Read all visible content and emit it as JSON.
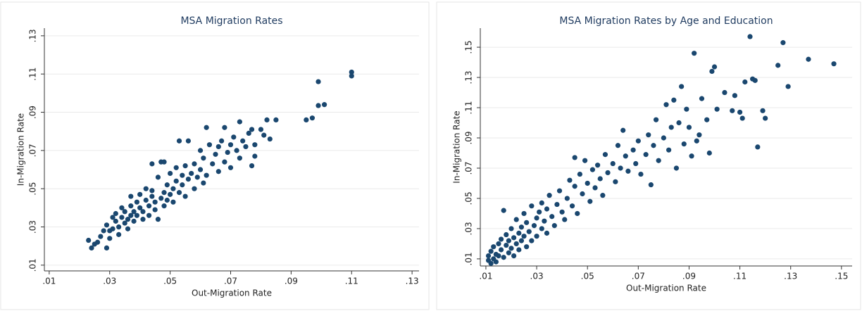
{
  "chart_data": [
    {
      "type": "scatter",
      "title": "MSA Migration Rates",
      "xlabel": "Out-Migration Rate",
      "ylabel": "In-Migration Rate",
      "color": "#1a476f",
      "grid": true,
      "xlim": [
        0.0084,
        0.1323
      ],
      "ylim": [
        0.007,
        0.134
      ],
      "xticks": [
        {
          "value": 0.01,
          "label": ".01"
        },
        {
          "value": 0.03,
          "label": ".03"
        },
        {
          "value": 0.05,
          "label": ".05"
        },
        {
          "value": 0.07,
          "label": ".07"
        },
        {
          "value": 0.09,
          "label": ".09"
        },
        {
          "value": 0.11,
          "label": ".11"
        },
        {
          "value": 0.13,
          "label": ".13"
        }
      ],
      "yticks": [
        {
          "value": 0.01,
          "label": ".01"
        },
        {
          "value": 0.03,
          "label": ".03"
        },
        {
          "value": 0.05,
          "label": ".05"
        },
        {
          "value": 0.07,
          "label": ".07"
        },
        {
          "value": 0.09,
          "label": ".09"
        },
        {
          "value": 0.11,
          "label": ".11"
        },
        {
          "value": 0.13,
          "label": ".13"
        }
      ],
      "x": [
        0.023,
        0.024,
        0.025,
        0.027,
        0.028,
        0.029,
        0.029,
        0.03,
        0.03,
        0.031,
        0.032,
        0.032,
        0.033,
        0.033,
        0.034,
        0.034,
        0.035,
        0.035,
        0.036,
        0.036,
        0.037,
        0.037,
        0.037,
        0.038,
        0.038,
        0.039,
        0.039,
        0.04,
        0.04,
        0.041,
        0.041,
        0.042,
        0.042,
        0.043,
        0.043,
        0.044,
        0.044,
        0.045,
        0.045,
        0.046,
        0.046,
        0.047,
        0.047,
        0.048,
        0.048,
        0.049,
        0.049,
        0.05,
        0.05,
        0.051,
        0.051,
        0.052,
        0.052,
        0.053,
        0.053,
        0.054,
        0.054,
        0.055,
        0.055,
        0.056,
        0.056,
        0.057,
        0.058,
        0.058,
        0.059,
        0.06,
        0.06,
        0.061,
        0.061,
        0.062,
        0.062,
        0.063,
        0.064,
        0.065,
        0.066,
        0.066,
        0.067,
        0.068,
        0.068,
        0.069,
        0.07,
        0.07,
        0.071,
        0.072,
        0.073,
        0.073,
        0.074,
        0.075,
        0.076,
        0.077,
        0.077,
        0.078,
        0.078,
        0.08,
        0.081,
        0.082,
        0.083,
        0.085,
        0.095,
        0.097,
        0.099,
        0.099,
        0.101,
        0.11,
        0.11,
        0.026,
        0.031,
        0.044,
        0.048
      ],
      "y": [
        0.023,
        0.019,
        0.021,
        0.025,
        0.028,
        0.019,
        0.031,
        0.024,
        0.028,
        0.029,
        0.033,
        0.037,
        0.03,
        0.026,
        0.035,
        0.04,
        0.032,
        0.038,
        0.029,
        0.034,
        0.036,
        0.041,
        0.046,
        0.033,
        0.038,
        0.043,
        0.036,
        0.04,
        0.047,
        0.034,
        0.038,
        0.044,
        0.05,
        0.036,
        0.041,
        0.046,
        0.049,
        0.039,
        0.043,
        0.056,
        0.034,
        0.045,
        0.064,
        0.041,
        0.048,
        0.052,
        0.044,
        0.047,
        0.058,
        0.05,
        0.043,
        0.054,
        0.061,
        0.048,
        0.075,
        0.052,
        0.057,
        0.046,
        0.062,
        0.055,
        0.075,
        0.058,
        0.05,
        0.063,
        0.056,
        0.06,
        0.07,
        0.053,
        0.066,
        0.082,
        0.057,
        0.073,
        0.063,
        0.068,
        0.059,
        0.072,
        0.075,
        0.082,
        0.064,
        0.069,
        0.073,
        0.061,
        0.077,
        0.07,
        0.085,
        0.066,
        0.075,
        0.072,
        0.079,
        0.062,
        0.081,
        0.073,
        0.067,
        0.081,
        0.078,
        0.086,
        0.076,
        0.086,
        0.086,
        0.087,
        0.0935,
        0.106,
        0.094,
        0.109,
        0.111,
        0.022,
        0.035,
        0.063,
        0.064
      ]
    },
    {
      "type": "scatter",
      "title": "MSA Migration Rates by Age and Education",
      "xlabel": "Out-Migration Rate",
      "ylabel": "In-Migration Rate",
      "color": "#1a476f",
      "grid": true,
      "xlim": [
        0.0078,
        0.1542
      ],
      "ylim": [
        0.0053,
        0.1626
      ],
      "xticks": [
        {
          "value": 0.01,
          "label": ".01"
        },
        {
          "value": 0.03,
          "label": ".03"
        },
        {
          "value": 0.05,
          "label": ".05"
        },
        {
          "value": 0.07,
          "label": ".07"
        },
        {
          "value": 0.09,
          "label": ".09"
        },
        {
          "value": 0.11,
          "label": ".11"
        },
        {
          "value": 0.13,
          "label": ".13"
        },
        {
          "value": 0.15,
          "label": ".15"
        }
      ],
      "yticks": [
        {
          "value": 0.01,
          "label": ".01"
        },
        {
          "value": 0.03,
          "label": ".03"
        },
        {
          "value": 0.05,
          "label": ".05"
        },
        {
          "value": 0.07,
          "label": ".07"
        },
        {
          "value": 0.09,
          "label": ".09"
        },
        {
          "value": 0.11,
          "label": ".11"
        },
        {
          "value": 0.13,
          "label": ".13"
        },
        {
          "value": 0.15,
          "label": ".15"
        }
      ],
      "x": [
        0.011,
        0.011,
        0.012,
        0.012,
        0.013,
        0.013,
        0.014,
        0.014,
        0.015,
        0.015,
        0.016,
        0.016,
        0.017,
        0.017,
        0.018,
        0.018,
        0.019,
        0.019,
        0.02,
        0.02,
        0.021,
        0.021,
        0.022,
        0.022,
        0.023,
        0.023,
        0.024,
        0.024,
        0.025,
        0.025,
        0.026,
        0.026,
        0.027,
        0.028,
        0.028,
        0.029,
        0.03,
        0.03,
        0.031,
        0.032,
        0.032,
        0.033,
        0.034,
        0.034,
        0.035,
        0.036,
        0.037,
        0.038,
        0.039,
        0.04,
        0.041,
        0.042,
        0.043,
        0.044,
        0.045,
        0.045,
        0.046,
        0.047,
        0.048,
        0.049,
        0.05,
        0.051,
        0.052,
        0.053,
        0.054,
        0.055,
        0.056,
        0.057,
        0.058,
        0.06,
        0.061,
        0.062,
        0.063,
        0.064,
        0.065,
        0.066,
        0.068,
        0.069,
        0.07,
        0.071,
        0.073,
        0.074,
        0.075,
        0.076,
        0.077,
        0.078,
        0.08,
        0.081,
        0.082,
        0.083,
        0.084,
        0.085,
        0.086,
        0.087,
        0.088,
        0.089,
        0.09,
        0.091,
        0.092,
        0.093,
        0.094,
        0.095,
        0.097,
        0.098,
        0.099,
        0.1,
        0.101,
        0.104,
        0.107,
        0.108,
        0.11,
        0.111,
        0.112,
        0.114,
        0.115,
        0.116,
        0.117,
        0.119,
        0.12,
        0.125,
        0.127,
        0.129,
        0.137,
        0.147
      ],
      "y": [
        0.009,
        0.012,
        0.007,
        0.015,
        0.01,
        0.018,
        0.013,
        0.008,
        0.02,
        0.012,
        0.016,
        0.023,
        0.011,
        0.042,
        0.019,
        0.026,
        0.014,
        0.022,
        0.017,
        0.03,
        0.024,
        0.012,
        0.02,
        0.036,
        0.027,
        0.016,
        0.031,
        0.022,
        0.025,
        0.04,
        0.018,
        0.034,
        0.028,
        0.045,
        0.022,
        0.032,
        0.037,
        0.025,
        0.041,
        0.03,
        0.047,
        0.035,
        0.027,
        0.043,
        0.052,
        0.038,
        0.032,
        0.046,
        0.055,
        0.041,
        0.036,
        0.05,
        0.062,
        0.045,
        0.058,
        0.077,
        0.04,
        0.066,
        0.053,
        0.075,
        0.06,
        0.048,
        0.069,
        0.057,
        0.072,
        0.063,
        0.052,
        0.079,
        0.067,
        0.073,
        0.061,
        0.085,
        0.07,
        0.095,
        0.078,
        0.068,
        0.082,
        0.073,
        0.088,
        0.066,
        0.079,
        0.092,
        0.059,
        0.085,
        0.102,
        0.075,
        0.09,
        0.112,
        0.082,
        0.097,
        0.115,
        0.07,
        0.1,
        0.124,
        0.086,
        0.109,
        0.097,
        0.078,
        0.146,
        0.088,
        0.092,
        0.116,
        0.102,
        0.08,
        0.134,
        0.137,
        0.109,
        0.12,
        0.108,
        0.118,
        0.107,
        0.103,
        0.127,
        0.157,
        0.129,
        0.128,
        0.084,
        0.108,
        0.103,
        0.138,
        0.153,
        0.124,
        0.142,
        0.139
      ]
    }
  ]
}
